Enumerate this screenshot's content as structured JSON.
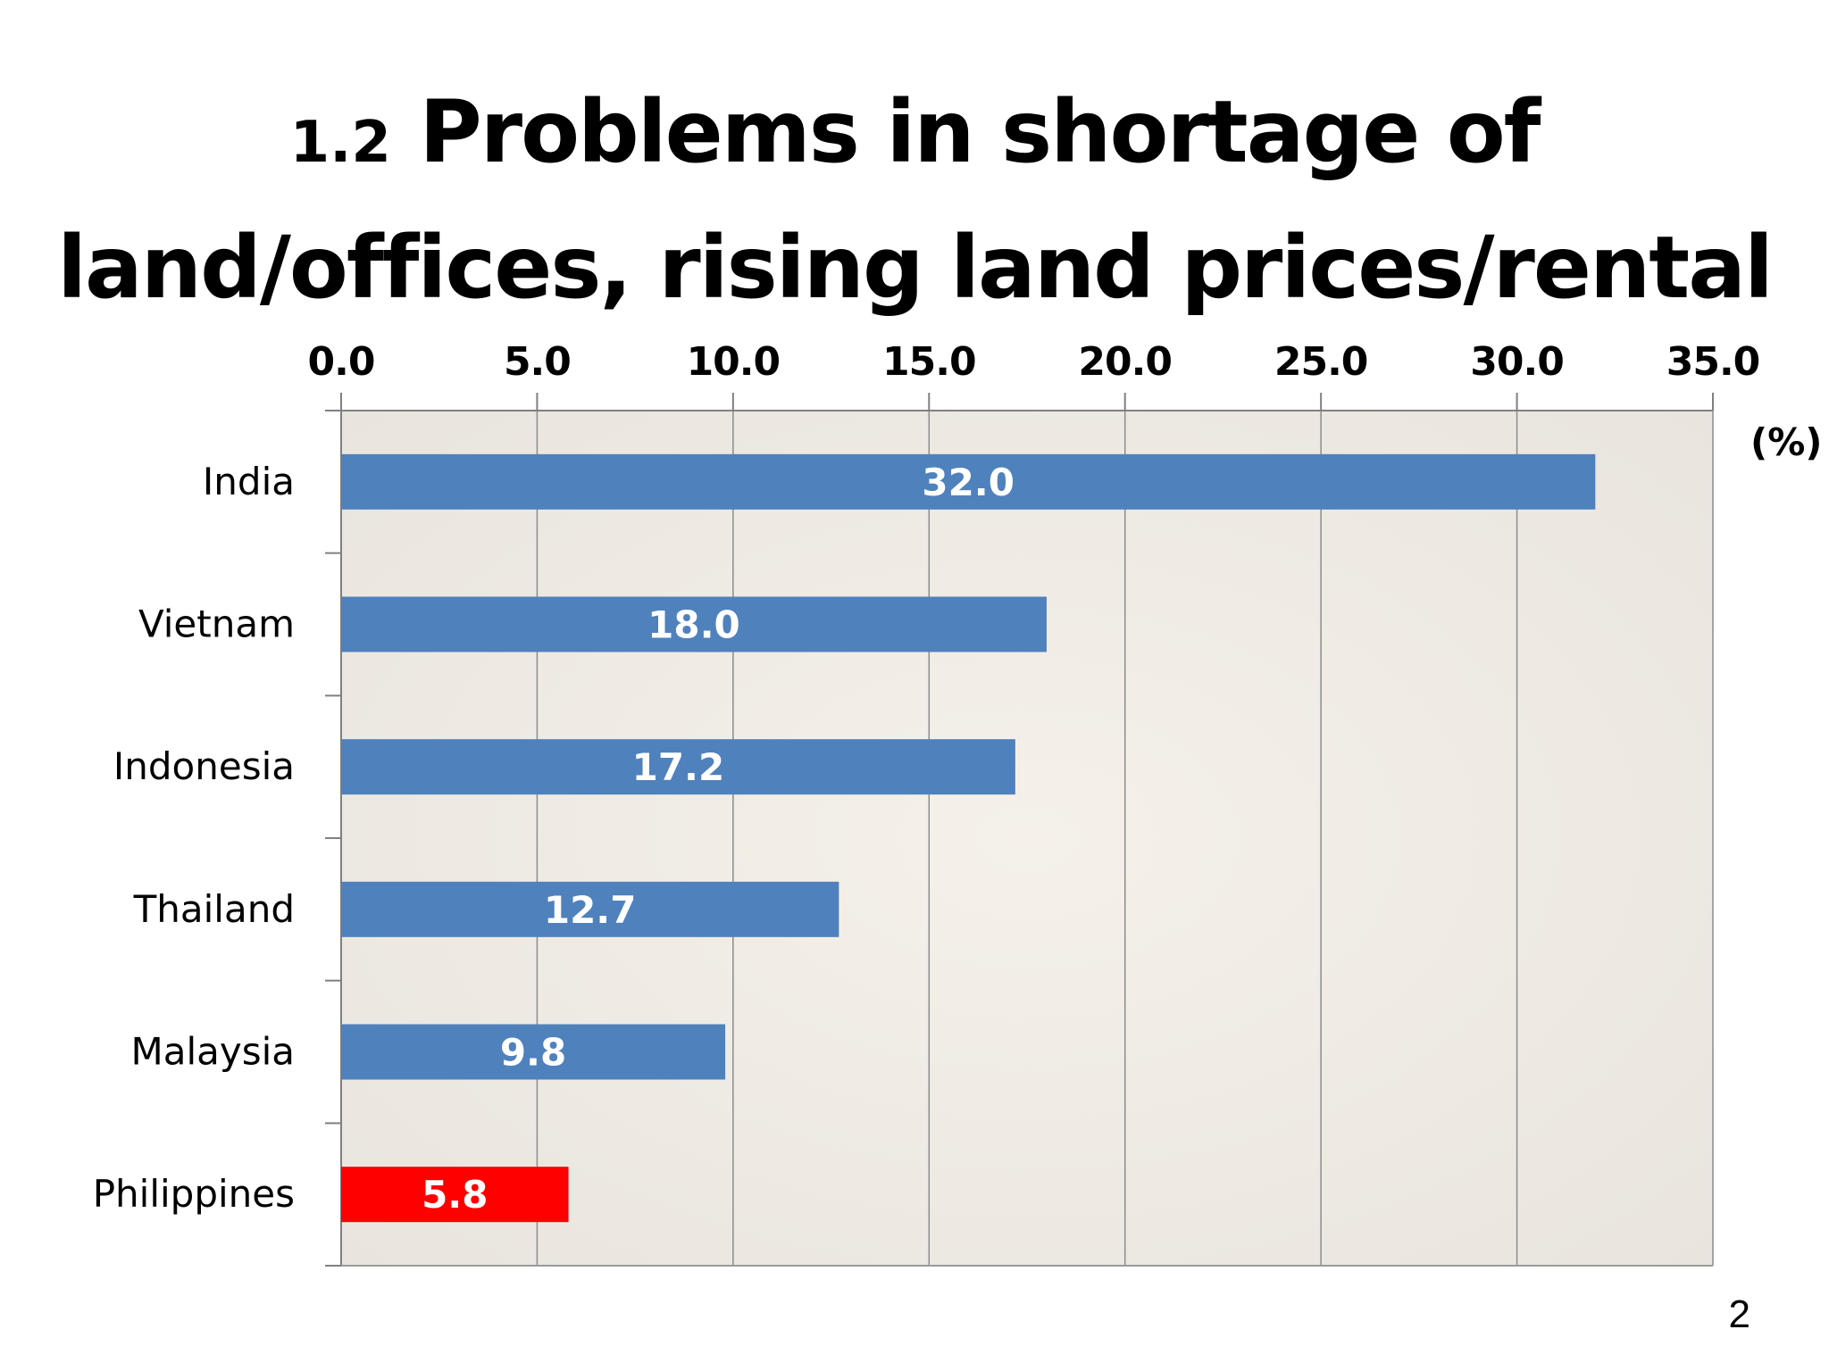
{
  "slide": {
    "title_number": "1.2",
    "title_line1": "Problems in shortage of",
    "title_line2": "land/offices, rising land prices/rental",
    "page_number": "2"
  },
  "chart_data": {
    "type": "bar",
    "orientation": "horizontal",
    "categories": [
      "India",
      "Vietnam",
      "Indonesia",
      "Thailand",
      "Malaysia",
      "Philippines"
    ],
    "values": [
      32.0,
      18.0,
      17.2,
      12.7,
      9.8,
      5.8
    ],
    "data_labels": [
      "32.0",
      "18.0",
      "17.2",
      "12.7",
      "9.8",
      "5.8"
    ],
    "bar_colors": [
      "#4f81bd",
      "#4f81bd",
      "#4f81bd",
      "#4f81bd",
      "#4f81bd",
      "#ff0000"
    ],
    "value_axis": {
      "position": "top",
      "range": [
        0,
        35
      ],
      "ticks": [
        0,
        5,
        10,
        15,
        20,
        25,
        30,
        35
      ],
      "tick_labels": [
        "0.0",
        "5.0",
        "10.0",
        "15.0",
        "20.0",
        "25.0",
        "30.0",
        "35.0"
      ],
      "unit_label": "(%)"
    },
    "grid": true,
    "legend": false,
    "plot_background": "#ede9e2",
    "gridline_color": "#8c8c8c"
  }
}
